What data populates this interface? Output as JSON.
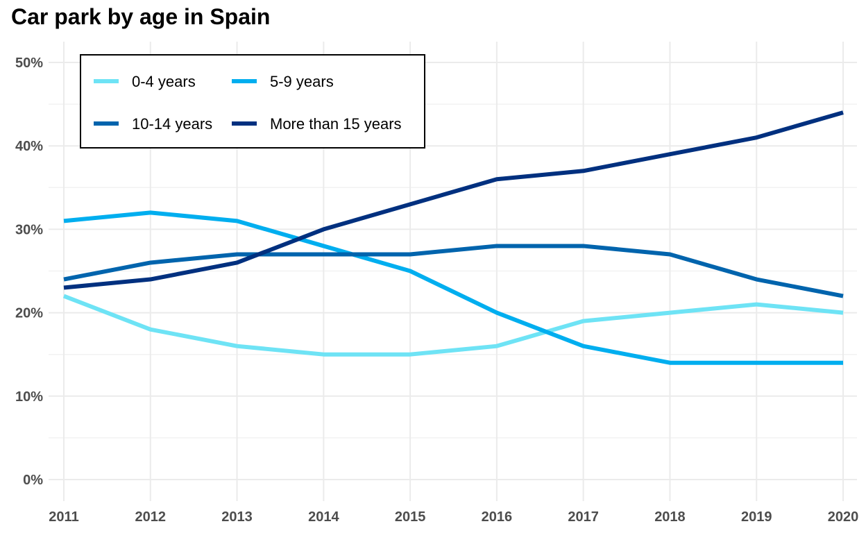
{
  "chart_data": {
    "type": "line",
    "title": "Car park by age in Spain",
    "xlabel": "",
    "ylabel": "",
    "x": [
      2011,
      2012,
      2013,
      2014,
      2015,
      2016,
      2017,
      2018,
      2019,
      2020
    ],
    "ylim": [
      0,
      50
    ],
    "y_ticks": [
      0,
      10,
      20,
      30,
      40,
      50
    ],
    "y_tick_labels": [
      "0%",
      "10%",
      "20%",
      "30%",
      "40%",
      "50%"
    ],
    "x_tick_labels": [
      "2011",
      "2012",
      "2013",
      "2014",
      "2015",
      "2016",
      "2017",
      "2018",
      "2019",
      "2020"
    ],
    "grid": true,
    "legend_position": "top-left",
    "series": [
      {
        "name": "0-4 years",
        "color": "#6ee3f5",
        "values": [
          22,
          18,
          16,
          15,
          15,
          16,
          19,
          20,
          21,
          20
        ]
      },
      {
        "name": "5-9 years",
        "color": "#00aeef",
        "values": [
          31,
          32,
          31,
          28,
          25,
          20,
          16,
          14,
          14,
          14
        ]
      },
      {
        "name": "10-14 years",
        "color": "#0064ad",
        "values": [
          24,
          26,
          27,
          27,
          27,
          28,
          28,
          27,
          24,
          22
        ]
      },
      {
        "name": "More than 15 years",
        "color": "#00307f",
        "values": [
          23,
          24,
          26,
          30,
          33,
          36,
          37,
          39,
          41,
          44
        ]
      }
    ]
  }
}
